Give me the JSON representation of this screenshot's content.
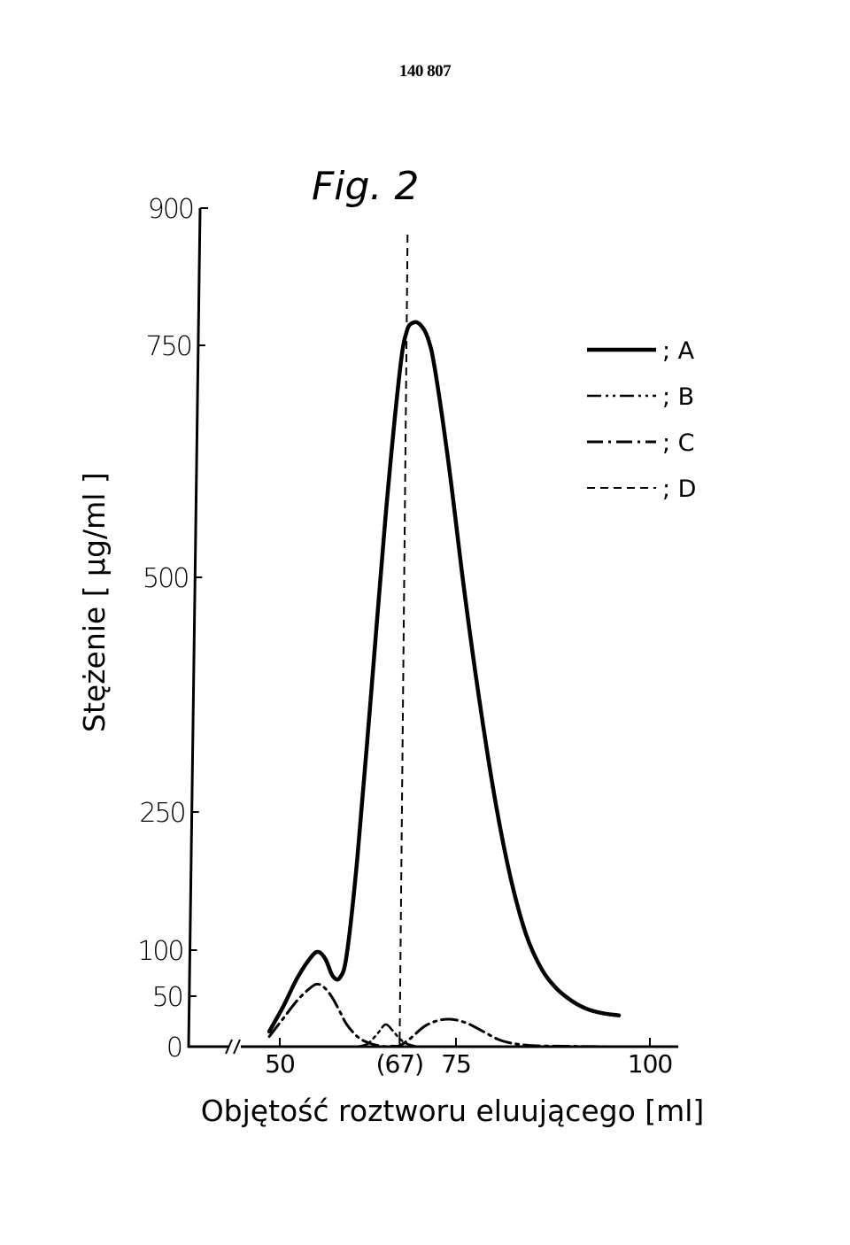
{
  "page": {
    "number": "140 807"
  },
  "chart_data": {
    "type": "line",
    "title": "Fig. 2",
    "xlabel": "Objętość roztworu eluującego [ml]",
    "ylabel": "Stężenie [ μg/ml ]",
    "xlim": [
      40,
      103
    ],
    "ylim": [
      0,
      900
    ],
    "x_ticks": [
      {
        "value": 50,
        "label": "50"
      },
      {
        "value": 67,
        "label": "(67)"
      },
      {
        "value": 75,
        "label": "75"
      },
      {
        "value": 100,
        "label": "100"
      }
    ],
    "y_ticks": [
      {
        "value": 0,
        "label": "0"
      },
      {
        "value": 50,
        "label": "50"
      },
      {
        "value": 100,
        "label": "100"
      },
      {
        "value": 250,
        "label": "250"
      },
      {
        "value": 500,
        "label": "500"
      },
      {
        "value": 750,
        "label": "750"
      },
      {
        "value": 900,
        "label": "900"
      }
    ],
    "axis_break": "x, between 40 and 50",
    "grid": false,
    "legend_position": "top-right",
    "vline": {
      "x": 67,
      "style": "dashed"
    },
    "series": [
      {
        "name": "A",
        "style": "solid",
        "points": [
          [
            48.5,
            15
          ],
          [
            50.5,
            40
          ],
          [
            52.5,
            70
          ],
          [
            54.5,
            93
          ],
          [
            55.5,
            98
          ],
          [
            56.5,
            90
          ],
          [
            57.5,
            72
          ],
          [
            58.5,
            70
          ],
          [
            59.5,
            95
          ],
          [
            61,
            200
          ],
          [
            63,
            380
          ],
          [
            65,
            565
          ],
          [
            67,
            720
          ],
          [
            68,
            765
          ],
          [
            69,
            775
          ],
          [
            70,
            772
          ],
          [
            71,
            758
          ],
          [
            72,
            725
          ],
          [
            74,
            620
          ],
          [
            76,
            490
          ],
          [
            78,
            370
          ],
          [
            80,
            265
          ],
          [
            82,
            180
          ],
          [
            84,
            118
          ],
          [
            86,
            80
          ],
          [
            88,
            58
          ],
          [
            90,
            45
          ],
          [
            92,
            37
          ],
          [
            94,
            33
          ],
          [
            96,
            31
          ]
        ]
      },
      {
        "name": "B",
        "style": "dash-dot-dot",
        "points": [
          [
            61,
            0
          ],
          [
            62.5,
            3
          ],
          [
            64,
            14
          ],
          [
            65,
            22
          ],
          [
            66,
            16
          ],
          [
            67,
            8
          ],
          [
            68,
            3
          ],
          [
            69.5,
            0
          ]
        ]
      },
      {
        "name": "C",
        "style": "dash-dot",
        "points": [
          [
            48.5,
            10
          ],
          [
            50.5,
            28
          ],
          [
            52.5,
            46
          ],
          [
            54.5,
            60
          ],
          [
            55.5,
            63
          ],
          [
            56.5,
            58
          ],
          [
            57.5,
            48
          ],
          [
            58.5,
            35
          ],
          [
            59.5,
            22
          ],
          [
            61,
            10
          ],
          [
            62.5,
            4
          ],
          [
            64.5,
            0.5
          ],
          [
            66,
            0.5
          ],
          [
            67,
            1
          ],
          [
            68.5,
            8
          ],
          [
            70.5,
            20
          ],
          [
            72.5,
            26
          ],
          [
            74.5,
            27
          ],
          [
            76.5,
            23
          ],
          [
            78.5,
            15
          ],
          [
            80.5,
            7
          ],
          [
            82.5,
            3
          ],
          [
            85,
            1
          ],
          [
            88,
            0.5
          ],
          [
            95,
            0
          ]
        ]
      },
      {
        "name": "D",
        "style": "dashed",
        "points": []
      }
    ],
    "legend": [
      {
        "label": "; A",
        "style": "solid"
      },
      {
        "label": "; B",
        "style": "dash-dot-dot"
      },
      {
        "label": "; C",
        "style": "dash-dot"
      },
      {
        "label": "; D",
        "style": "dashed"
      }
    ]
  }
}
